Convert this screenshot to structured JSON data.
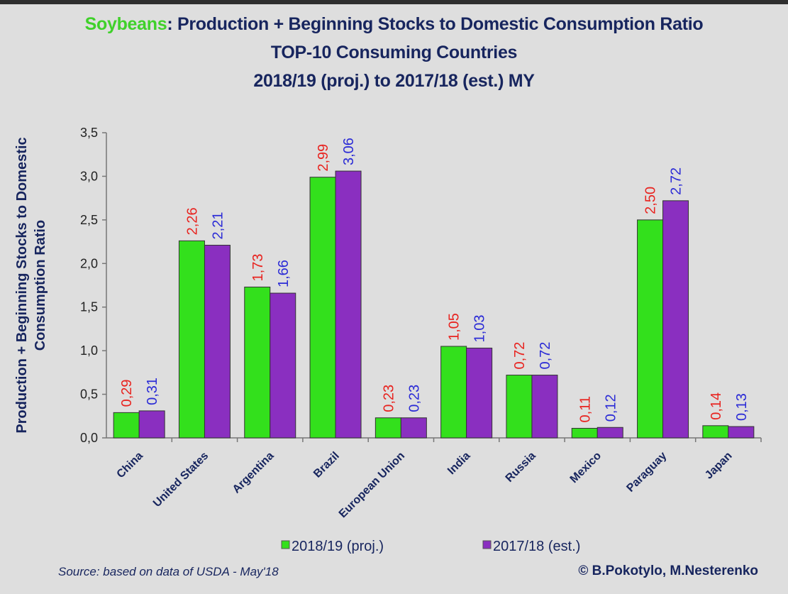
{
  "chart_data": {
    "type": "bar",
    "title_highlight": "Soybeans",
    "title": ": Production + Beginning Stocks to Domestic Consumption Ratio",
    "subtitle": "TOP-10 Consuming Countries",
    "subtitle2": "2018/19 (proj.) to 2017/18 (est.) MY",
    "ylabel_line1": "Production + Beginning Stocks to Domestic",
    "ylabel_line2": "Consumption Ratio",
    "xlabel": "",
    "ylim": [
      0,
      3.5
    ],
    "yticks": [
      "0,0",
      "0,5",
      "1,0",
      "1,5",
      "2,0",
      "2,5",
      "3,0",
      "3,5"
    ],
    "grid": false,
    "legend_position": "bottom",
    "categories": [
      "China",
      "United States",
      "Argentina",
      "Brazil",
      "European Union",
      "India",
      "Russia",
      "Mexico",
      "Paraguay",
      "Japan"
    ],
    "series": [
      {
        "name": "2018/19 (proj.)",
        "color": "#33e01c",
        "label_color": "#e8231f",
        "values": [
          0.29,
          2.26,
          1.73,
          2.99,
          0.23,
          1.05,
          0.72,
          0.11,
          2.5,
          0.14
        ],
        "labels": [
          "0,29",
          "2,26",
          "1,73",
          "2,99",
          "0,23",
          "1,05",
          "0,72",
          "0,11",
          "2,50",
          "0,14"
        ]
      },
      {
        "name": "2017/18 (est.)",
        "color": "#8a2fc0",
        "label_color": "#2b2bd6",
        "values": [
          0.31,
          2.21,
          1.66,
          3.06,
          0.23,
          1.03,
          0.72,
          0.12,
          2.72,
          0.13
        ],
        "labels": [
          "0,31",
          "2,21",
          "1,66",
          "3,06",
          "0,23",
          "1,03",
          "0,72",
          "0,12",
          "2,72",
          "0,13"
        ]
      }
    ]
  },
  "footer": {
    "source": "Source: based on data of USDA - May'18",
    "copyright": "© B.Pokotylo, M.Nesterenko"
  }
}
